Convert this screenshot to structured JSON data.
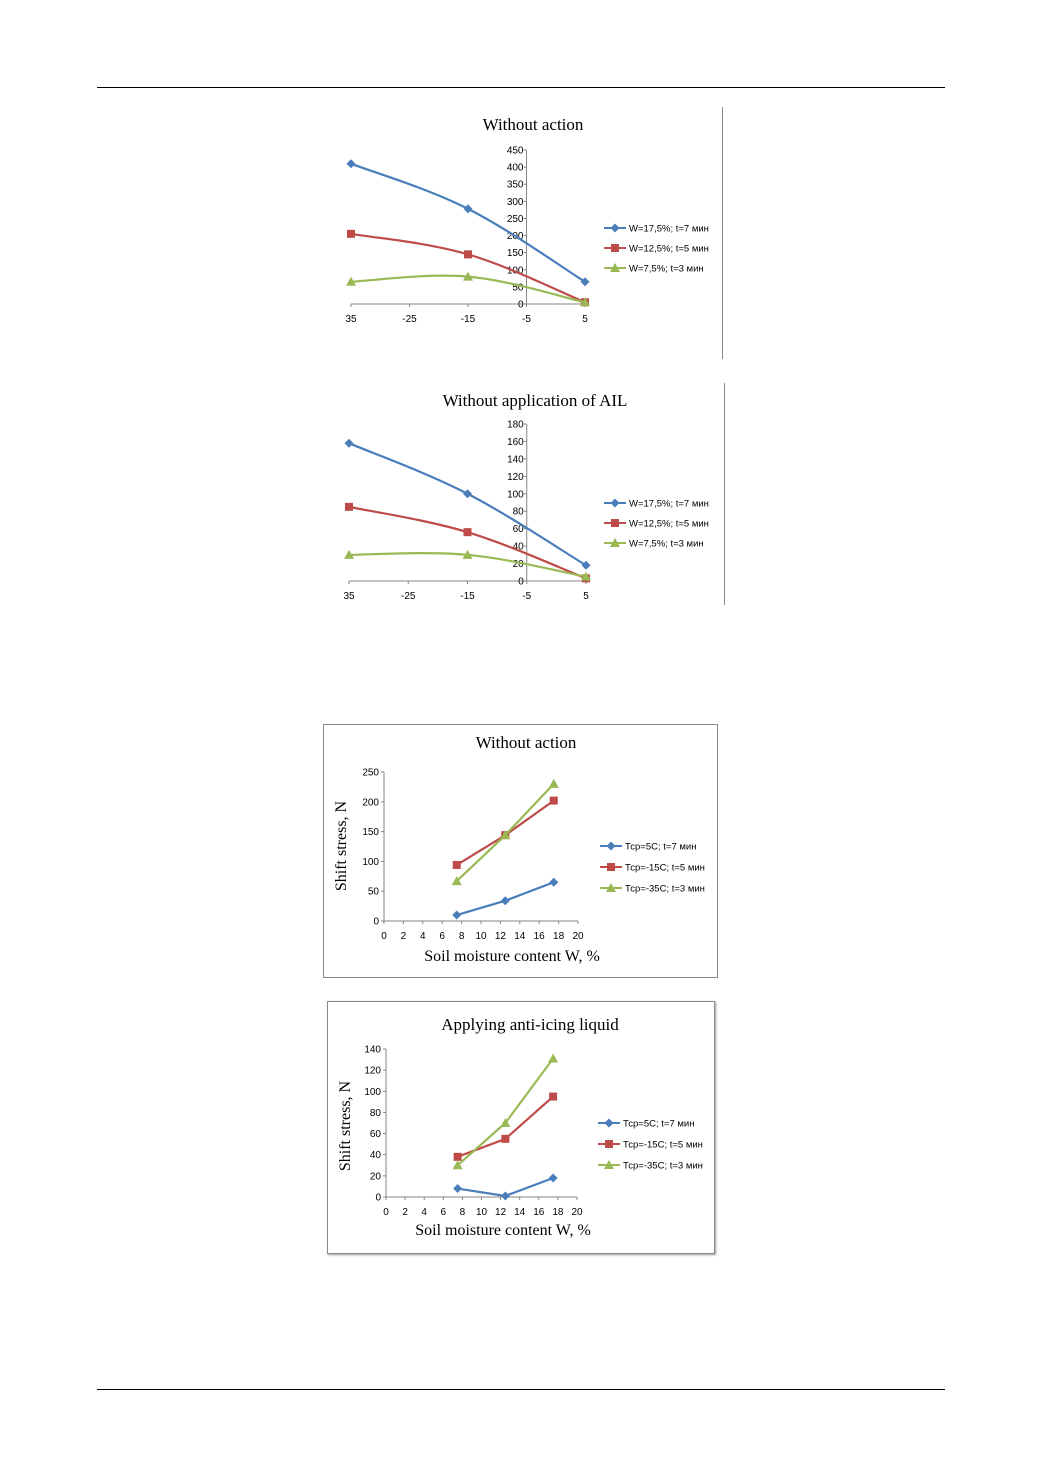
{
  "page": {},
  "colors": {
    "blue": "#4a7ebb",
    "red": "#be4b48",
    "green": "#98b954",
    "axis": "#868686"
  },
  "chart_data": [
    {
      "type": "line",
      "title": "Without action",
      "xlabel": "",
      "ylabel": "",
      "xlim": [
        -35,
        5
      ],
      "ylim": [
        0,
        450
      ],
      "x_ticks": [
        "35",
        "-25",
        "-15",
        "-5",
        "5"
      ],
      "y_ticks": [
        "0",
        "50",
        "100",
        "150",
        "200",
        "250",
        "300",
        "350",
        "400",
        "450"
      ],
      "x": [
        -35,
        -15,
        5
      ],
      "legend_position": "right",
      "series": [
        {
          "name": "W=17,5%; t=7 мин",
          "color": "blue",
          "marker": "diamond",
          "values": [
            410,
            278,
            65
          ]
        },
        {
          "name": "W=12,5%; t=5 мин",
          "color": "red",
          "marker": "square",
          "values": [
            205,
            145,
            5
          ]
        },
        {
          "name": "W=7,5%; t=3 мин",
          "color": "green",
          "marker": "triangle",
          "values": [
            65,
            80,
            5
          ]
        }
      ]
    },
    {
      "type": "line",
      "title": "Without application of AIL",
      "xlabel": "",
      "ylabel": "",
      "xlim": [
        -35,
        5
      ],
      "ylim": [
        0,
        180
      ],
      "x_ticks": [
        "35",
        "-25",
        "-15",
        "-5",
        "5"
      ],
      "y_ticks": [
        "0",
        "20",
        "40",
        "60",
        "80",
        "100",
        "120",
        "140",
        "160",
        "180"
      ],
      "x": [
        -35,
        -15,
        5
      ],
      "legend_position": "right",
      "series": [
        {
          "name": "W=17,5%; t=7 мин",
          "color": "blue",
          "marker": "diamond",
          "values": [
            158,
            100,
            18
          ]
        },
        {
          "name": "W=12,5%; t=5 мин",
          "color": "red",
          "marker": "square",
          "values": [
            85,
            56,
            3
          ]
        },
        {
          "name": "W=7,5%; t=3 мин",
          "color": "green",
          "marker": "triangle",
          "values": [
            30,
            30,
            5
          ]
        }
      ]
    },
    {
      "type": "line",
      "title": "Without action",
      "xlabel": "Soil moisture content W, %",
      "ylabel": "Shift stress, N",
      "xlim": [
        0,
        20
      ],
      "ylim": [
        0,
        250
      ],
      "x_ticks": [
        "0",
        "2",
        "4",
        "6",
        "8",
        "10",
        "12",
        "14",
        "16",
        "18",
        "20"
      ],
      "y_ticks": [
        "0",
        "50",
        "100",
        "150",
        "200",
        "250"
      ],
      "x": [
        7.5,
        12.5,
        17.5
      ],
      "legend_position": "right",
      "series": [
        {
          "name": "Тср=5С; t=7 мин",
          "color": "blue",
          "marker": "diamond",
          "values": [
            10,
            34,
            65
          ]
        },
        {
          "name": "Тср=-15С; t=5 мин",
          "color": "red",
          "marker": "square",
          "values": [
            94,
            144,
            202
          ]
        },
        {
          "name": "Тср=-35С; t=3 мин",
          "color": "green",
          "marker": "triangle",
          "values": [
            67,
            144,
            230
          ]
        }
      ]
    },
    {
      "type": "line",
      "title": "Applying anti-icing liquid",
      "xlabel": "Soil moisture content W, %",
      "ylabel": "Shift stress, N",
      "xlim": [
        0,
        20
      ],
      "ylim": [
        0,
        140
      ],
      "x_ticks": [
        "0",
        "2",
        "4",
        "6",
        "8",
        "10",
        "12",
        "14",
        "16",
        "18",
        "20"
      ],
      "y_ticks": [
        "0",
        "20",
        "40",
        "60",
        "80",
        "100",
        "120",
        "140"
      ],
      "x": [
        7.5,
        12.5,
        17.5
      ],
      "legend_position": "right",
      "series": [
        {
          "name": "Тср=5С; t=7 мин",
          "color": "blue",
          "marker": "diamond",
          "values": [
            8,
            1,
            18
          ]
        },
        {
          "name": "Тср=-15С; t=5 мин",
          "color": "red",
          "marker": "square",
          "values": [
            38,
            55,
            95
          ]
        },
        {
          "name": "Тср=-35С; t=3 мин",
          "color": "green",
          "marker": "triangle",
          "values": [
            30,
            70,
            131
          ]
        }
      ]
    }
  ]
}
